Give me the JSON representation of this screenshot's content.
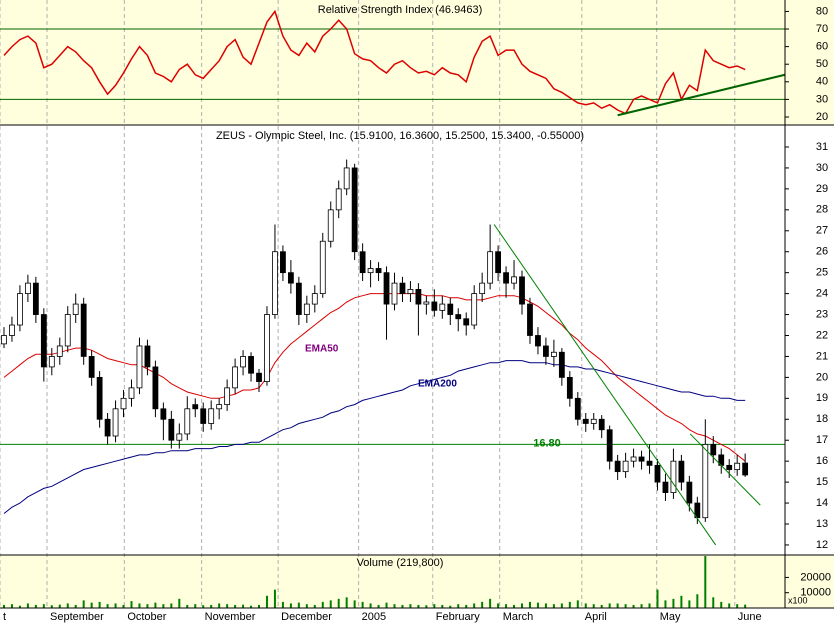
{
  "chart_data": [
    {
      "type": "line",
      "title": "Relative Strength Index (46.9463)",
      "color": "#dd0000",
      "x": [
        0,
        1,
        2,
        3,
        4,
        5,
        6,
        7,
        8,
        9,
        10,
        11,
        12,
        13,
        14,
        15,
        16,
        17,
        18,
        19,
        20,
        21,
        22,
        23,
        24,
        25,
        26,
        27,
        28,
        29,
        30,
        31,
        32,
        33,
        34,
        35,
        36,
        37,
        38,
        39,
        40,
        41,
        42,
        43,
        44,
        45,
        46,
        47,
        48,
        49,
        50,
        51,
        52,
        53,
        54,
        55,
        56,
        57,
        58,
        59,
        60,
        61,
        62,
        63,
        64,
        65,
        66,
        67,
        68,
        69,
        70,
        71,
        72,
        73,
        74,
        75,
        76,
        77,
        78,
        79,
        80,
        81,
        82,
        83,
        84,
        85,
        86,
        87,
        88,
        89,
        90,
        91,
        92,
        93
      ],
      "values": [
        55,
        60,
        64,
        66,
        62,
        48,
        50,
        55,
        60,
        57,
        52,
        48,
        40,
        33,
        38,
        45,
        53,
        60,
        55,
        45,
        43,
        40,
        47,
        50,
        44,
        42,
        47,
        52,
        60,
        64,
        54,
        50,
        62,
        74,
        80,
        66,
        58,
        55,
        62,
        57,
        66,
        70,
        75,
        70,
        56,
        53,
        52,
        48,
        45,
        50,
        52,
        48,
        45,
        46,
        44,
        48,
        45,
        44,
        40,
        54,
        63,
        66,
        55,
        58,
        58,
        50,
        46,
        44,
        42,
        36,
        34,
        31,
        28,
        27,
        28,
        25,
        27,
        24,
        22,
        30,
        32,
        30,
        28,
        39,
        45,
        30,
        38,
        35,
        58,
        52,
        50,
        48,
        49,
        46.9463
      ],
      "xlim": [
        -0.5,
        98
      ],
      "ylim": [
        15.45,
        86.5
      ],
      "yticks": [
        20,
        30,
        40,
        50,
        60,
        70,
        80
      ],
      "hlines": [
        {
          "value": 30,
          "color": "#006400"
        },
        {
          "value": 70,
          "color": "#006400"
        }
      ],
      "trendlines": [
        {
          "x": [
            77,
            98
          ],
          "y": [
            21,
            44
          ],
          "color": "#006400"
        }
      ]
    },
    {
      "type": "candlestick",
      "title": "ZEUS - Olympic Steel, Inc. (15.9100, 16.3600, 15.2500, 15.3400, -0.55000)",
      "x": [
        0,
        1,
        2,
        3,
        4,
        5,
        6,
        7,
        8,
        9,
        10,
        11,
        12,
        13,
        14,
        15,
        16,
        17,
        18,
        19,
        20,
        21,
        22,
        23,
        24,
        25,
        26,
        27,
        28,
        29,
        30,
        31,
        32,
        33,
        34,
        35,
        36,
        37,
        38,
        39,
        40,
        41,
        42,
        43,
        44,
        45,
        46,
        47,
        48,
        49,
        50,
        51,
        52,
        53,
        54,
        55,
        56,
        57,
        58,
        59,
        60,
        61,
        62,
        63,
        64,
        65,
        66,
        67,
        68,
        69,
        70,
        71,
        72,
        73,
        74,
        75,
        76,
        77,
        78,
        79,
        80,
        81,
        82,
        83,
        84,
        85,
        86,
        87,
        88,
        89,
        90,
        91,
        92,
        93
      ],
      "open": [
        21.6,
        22.0,
        22.5,
        24.0,
        24.5,
        23.0,
        20.5,
        21.0,
        21.5,
        23.0,
        23.5,
        21.0,
        20.0,
        18.0,
        17.2,
        18.5,
        19.0,
        19.5,
        21.5,
        20.5,
        18.5,
        18.0,
        17.0,
        17.3,
        18.7,
        18.5,
        17.8,
        18.5,
        18.7,
        19.5,
        20.5,
        21.0,
        20.2,
        19.8,
        23.0,
        26.0,
        25.0,
        24.5,
        23.0,
        23.5,
        24.0,
        26.5,
        28.0,
        29.0,
        30.0,
        26.0,
        25.0,
        25.2,
        25.0,
        23.5,
        24.5,
        24.0,
        24.2,
        23.5,
        23.6,
        23.2,
        23.5,
        23.0,
        22.8,
        22.5,
        24.0,
        24.5,
        26.0,
        25.0,
        24.5,
        24.8,
        23.5,
        22.0,
        21.5,
        21.0,
        21.2,
        20.0,
        19.0,
        18.0,
        17.8,
        18.0,
        17.5,
        16.0,
        15.5,
        16.0,
        16.2,
        16.0,
        15.8,
        15.0,
        14.5,
        16.0,
        15.0,
        14.0,
        13.3,
        16.8,
        16.3,
        15.8,
        15.6,
        15.91
      ],
      "high": [
        22.4,
        22.9,
        24.4,
        24.9,
        24.8,
        23.3,
        21.4,
        21.9,
        23.4,
        24.0,
        23.8,
        21.3,
        20.3,
        18.3,
        18.9,
        19.4,
        19.9,
        21.9,
        21.8,
        20.8,
        18.8,
        18.4,
        17.8,
        19.1,
        19.0,
        18.8,
        18.9,
        19.0,
        19.9,
        20.9,
        21.3,
        21.2,
        20.4,
        23.4,
        27.3,
        26.3,
        25.6,
        24.8,
        23.9,
        24.4,
        26.9,
        28.4,
        29.4,
        30.4,
        30.2,
        26.4,
        25.6,
        25.5,
        25.3,
        25.0,
        24.8,
        24.6,
        24.5,
        23.9,
        24.2,
        23.9,
        23.8,
        23.3,
        23.1,
        24.4,
        25.0,
        27.3,
        26.3,
        25.3,
        25.6,
        25.1,
        23.8,
        22.4,
        21.9,
        21.8,
        21.4,
        20.3,
        19.3,
        18.3,
        18.3,
        18.2,
        17.7,
        16.3,
        16.4,
        16.6,
        16.5,
        16.8,
        16.1,
        15.4,
        16.6,
        16.3,
        15.3,
        14.3,
        18.0,
        17.2,
        16.6,
        16.1,
        16.3,
        16.36
      ],
      "low": [
        21.4,
        21.7,
        22.2,
        23.6,
        22.6,
        19.8,
        20.1,
        20.6,
        21.2,
        22.6,
        20.6,
        19.6,
        17.6,
        16.8,
        16.9,
        18.1,
        18.6,
        19.2,
        20.1,
        18.1,
        17.0,
        16.6,
        16.6,
        17.0,
        18.1,
        17.4,
        17.5,
        18.0,
        18.4,
        19.2,
        20.1,
        19.8,
        19.3,
        19.6,
        22.8,
        24.6,
        24.0,
        22.5,
        22.6,
        23.1,
        23.8,
        26.2,
        27.6,
        28.7,
        25.6,
        24.6,
        24.3,
        24.6,
        21.8,
        23.2,
        23.6,
        23.6,
        22.0,
        23.0,
        22.9,
        22.8,
        22.5,
        22.2,
        22.0,
        22.3,
        23.6,
        24.2,
        24.6,
        23.8,
        24.2,
        23.0,
        21.6,
        21.1,
        20.6,
        20.5,
        19.6,
        18.6,
        17.7,
        17.4,
        17.5,
        17.1,
        15.6,
        15.1,
        15.2,
        15.7,
        15.6,
        15.4,
        14.6,
        14.1,
        14.2,
        14.6,
        13.6,
        13.0,
        13.1,
        15.9,
        15.4,
        15.2,
        15.3,
        15.25
      ],
      "close": [
        22.0,
        22.5,
        24.0,
        24.5,
        23.0,
        20.5,
        21.0,
        21.5,
        23.0,
        23.5,
        21.0,
        20.0,
        18.0,
        17.2,
        18.5,
        19.0,
        19.5,
        21.5,
        20.5,
        18.5,
        18.0,
        17.0,
        17.3,
        18.5,
        18.5,
        17.8,
        18.5,
        18.7,
        19.5,
        20.5,
        21.0,
        20.2,
        19.8,
        23.0,
        26.0,
        25.0,
        24.5,
        23.0,
        23.5,
        24.0,
        26.5,
        28.0,
        29.0,
        30.0,
        26.0,
        25.0,
        25.2,
        25.0,
        23.5,
        24.5,
        24.0,
        24.2,
        23.5,
        23.6,
        23.2,
        23.5,
        23.0,
        22.8,
        22.5,
        24.0,
        24.5,
        26.0,
        25.0,
        24.5,
        24.8,
        23.5,
        22.0,
        21.5,
        21.0,
        21.2,
        20.0,
        19.0,
        18.0,
        17.8,
        18.0,
        17.5,
        16.0,
        15.5,
        16.0,
        16.2,
        16.0,
        15.8,
        15.0,
        14.5,
        16.0,
        15.0,
        14.0,
        13.3,
        16.8,
        16.3,
        15.8,
        15.6,
        15.9,
        15.34
      ],
      "series": [
        {
          "name": "EMA50",
          "color": "#dd0000",
          "label_color": "#800080",
          "values": [
            20.0,
            20.3,
            20.6,
            20.9,
            21.1,
            21.1,
            21.1,
            21.2,
            21.3,
            21.4,
            21.4,
            21.3,
            21.1,
            20.9,
            20.8,
            20.7,
            20.6,
            20.6,
            20.4,
            20.2,
            20.0,
            19.7,
            19.5,
            19.3,
            19.2,
            19.1,
            19.0,
            19.0,
            19.1,
            19.2,
            19.4,
            19.4,
            19.5,
            20.0,
            20.7,
            21.2,
            21.6,
            21.9,
            22.2,
            22.5,
            22.8,
            23.1,
            23.3,
            23.6,
            23.8,
            23.9,
            24.0,
            24.0,
            24.0,
            24.0,
            24.0,
            24.0,
            24.0,
            23.9,
            23.9,
            23.9,
            23.8,
            23.8,
            23.7,
            23.7,
            23.7,
            23.8,
            23.9,
            23.9,
            23.9,
            23.8,
            23.6,
            23.4,
            23.1,
            22.8,
            22.5,
            22.1,
            21.8,
            21.4,
            21.1,
            20.8,
            20.4,
            20.0,
            19.7,
            19.4,
            19.1,
            18.8,
            18.5,
            18.2,
            18.0,
            17.8,
            17.5,
            17.3,
            17.2,
            17.0,
            16.8,
            16.6,
            16.3,
            16.0
          ]
        },
        {
          "name": "EMA200",
          "color": "#000080",
          "label_color": "#000080",
          "values": [
            13.5,
            13.8,
            14.0,
            14.3,
            14.5,
            14.7,
            14.8,
            15.0,
            15.2,
            15.4,
            15.6,
            15.7,
            15.8,
            15.9,
            16.0,
            16.1,
            16.2,
            16.3,
            16.3,
            16.4,
            16.4,
            16.5,
            16.5,
            16.5,
            16.6,
            16.6,
            16.6,
            16.7,
            16.7,
            16.8,
            16.8,
            16.9,
            16.9,
            17.1,
            17.3,
            17.5,
            17.6,
            17.8,
            17.9,
            18.0,
            18.1,
            18.3,
            18.4,
            18.6,
            18.7,
            18.9,
            19.0,
            19.1,
            19.2,
            19.3,
            19.4,
            19.6,
            19.7,
            19.8,
            19.9,
            20.0,
            20.1,
            20.3,
            20.4,
            20.5,
            20.6,
            20.7,
            20.7,
            20.8,
            20.8,
            20.8,
            20.7,
            20.7,
            20.7,
            20.6,
            20.6,
            20.5,
            20.5,
            20.4,
            20.4,
            20.3,
            20.2,
            20.1,
            20.0,
            19.9,
            19.8,
            19.7,
            19.6,
            19.5,
            19.4,
            19.3,
            19.3,
            19.2,
            19.1,
            19.1,
            19.0,
            19.0,
            18.9,
            18.9
          ]
        }
      ],
      "xlim": [
        -0.5,
        98
      ],
      "ylim": [
        11.52,
        32.05
      ],
      "yticks": [
        12,
        13,
        14,
        15,
        16,
        17,
        18,
        19,
        20,
        21,
        22,
        23,
        24,
        25,
        26,
        27,
        28,
        29,
        30,
        31
      ],
      "hlines": [
        {
          "value": 16.8,
          "label": "16.80",
          "color": "#008000"
        }
      ],
      "trendlines": [
        {
          "x": [
            61.5,
            89.3
          ],
          "y": [
            27.3,
            12.0
          ],
          "color": "#008000"
        },
        {
          "x": [
            86.1,
            94.9
          ],
          "y": [
            17.3,
            13.9
          ],
          "color": "#008000"
        }
      ]
    },
    {
      "type": "bar",
      "title": "Volume (219,800)",
      "unit": "x100",
      "color": "#008000",
      "x": [
        0,
        1,
        2,
        3,
        4,
        5,
        6,
        7,
        8,
        9,
        10,
        11,
        12,
        13,
        14,
        15,
        16,
        17,
        18,
        19,
        20,
        21,
        22,
        23,
        24,
        25,
        26,
        27,
        28,
        29,
        30,
        31,
        32,
        33,
        34,
        35,
        36,
        37,
        38,
        39,
        40,
        41,
        42,
        43,
        44,
        45,
        46,
        47,
        48,
        49,
        50,
        51,
        52,
        53,
        54,
        55,
        56,
        57,
        58,
        59,
        60,
        61,
        62,
        63,
        64,
        65,
        66,
        67,
        68,
        69,
        70,
        71,
        72,
        73,
        74,
        75,
        76,
        77,
        78,
        79,
        80,
        81,
        82,
        83,
        84,
        85,
        86,
        87,
        88,
        89,
        90,
        91,
        92,
        93
      ],
      "values": [
        2000,
        2500,
        1500,
        3000,
        2000,
        2500,
        1800,
        2200,
        3000,
        2000,
        5000,
        3500,
        4000,
        2500,
        3000,
        2000,
        4500,
        3000,
        2500,
        3500,
        2500,
        3000,
        6000,
        2000,
        2500,
        1800,
        2000,
        3000,
        2500,
        2000,
        2200,
        1500,
        2000,
        8000,
        12000,
        4000,
        3000,
        3500,
        2500,
        2000,
        4000,
        5000,
        6000,
        7000,
        5000,
        4000,
        3000,
        2000,
        3500,
        2500,
        2000,
        2500,
        2000,
        1800,
        2500,
        2000,
        1500,
        2500,
        2000,
        3000,
        4000,
        6000,
        3000,
        2500,
        2000,
        3000,
        4000,
        3500,
        3000,
        2500,
        3000,
        4000,
        5000,
        3000,
        2500,
        2000,
        3000,
        3000,
        2500,
        2000,
        2500,
        3000,
        12000,
        5000,
        6000,
        8000,
        5000,
        9000,
        34000,
        7000,
        4000,
        3000,
        2500,
        2198
      ],
      "xlim": [
        -0.5,
        98
      ],
      "ylim": [
        0,
        34667
      ],
      "yticks": [
        10000,
        20000
      ],
      "xticks": [
        {
          "value": -0.5,
          "label": "t"
        },
        {
          "value": 5.4,
          "label": "September"
        },
        {
          "value": 15.1,
          "label": "October"
        },
        {
          "value": 24.8,
          "label": "November"
        },
        {
          "value": 34.4,
          "label": "December"
        },
        {
          "value": 44.5,
          "label": "2005"
        },
        {
          "value": 53.8,
          "label": "February"
        },
        {
          "value": 62.2,
          "label": "March"
        },
        {
          "value": 72.5,
          "label": "April"
        },
        {
          "value": 81.9,
          "label": "May"
        },
        {
          "value": 91.7,
          "label": "June"
        }
      ]
    }
  ]
}
